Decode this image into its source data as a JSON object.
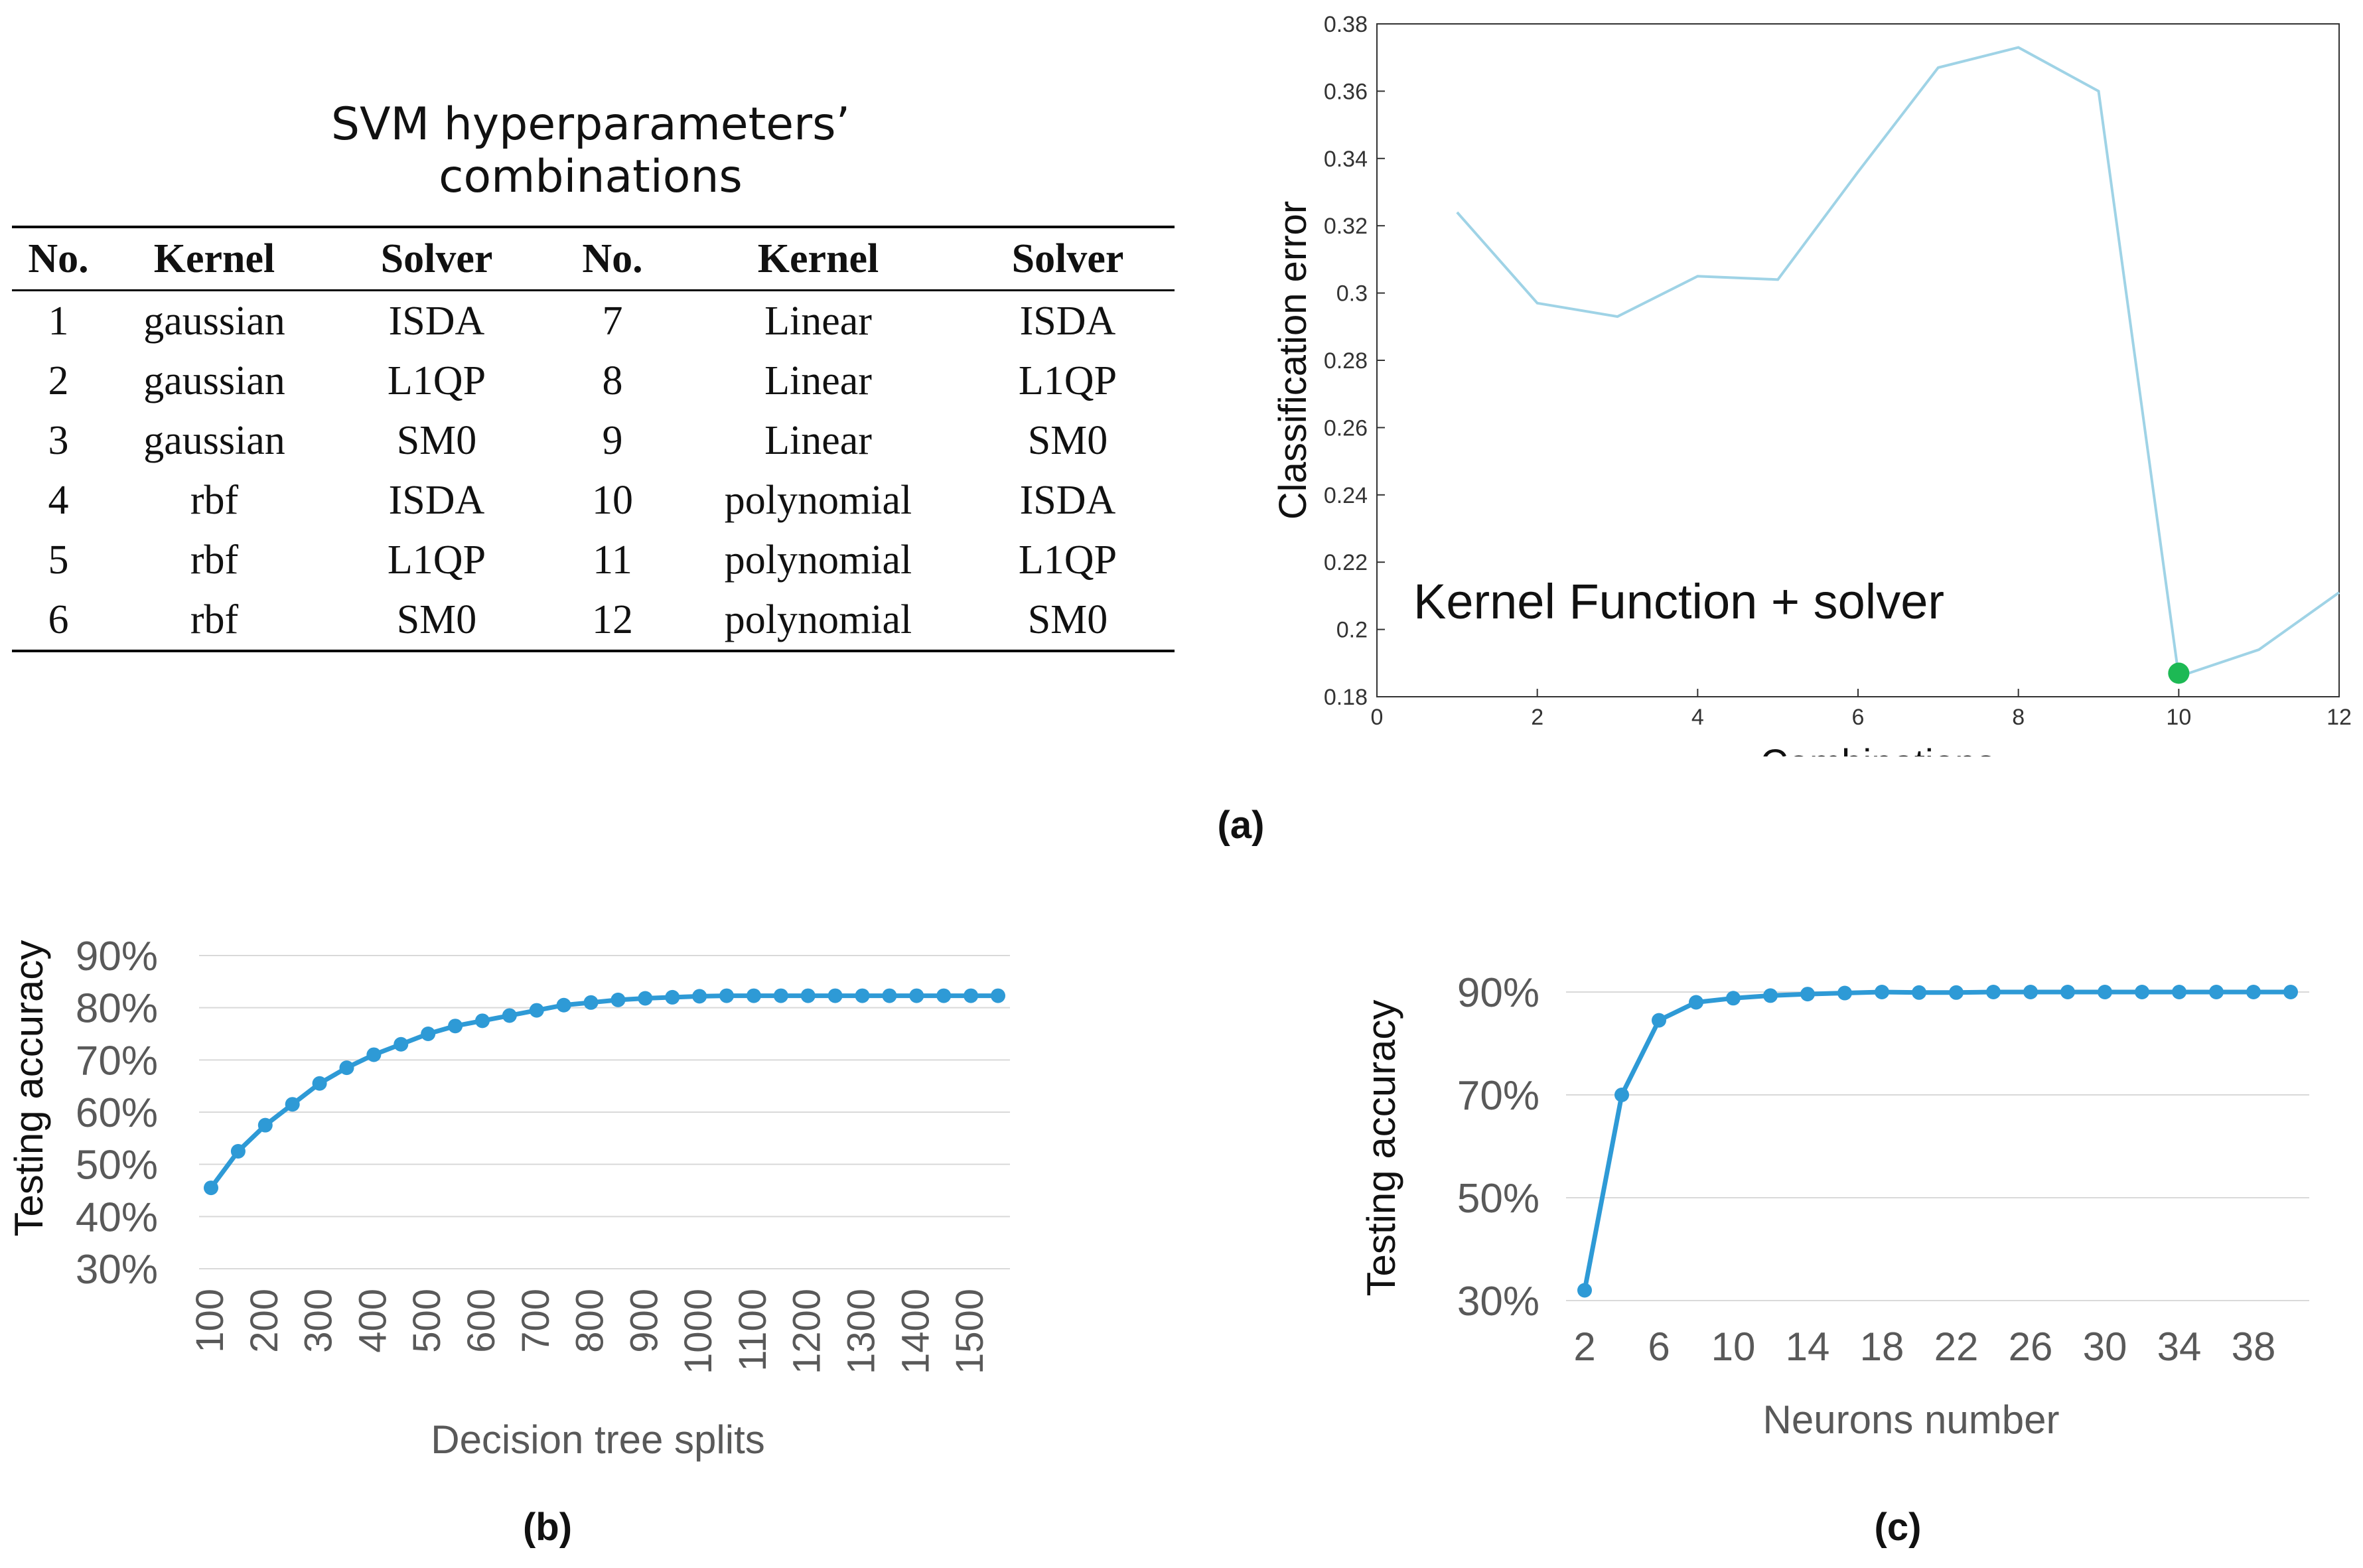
{
  "table": {
    "title": "SVM hyperparameters’ combinations",
    "headers": [
      "No.",
      "Kernel",
      "Solver",
      "No.",
      "Kernel",
      "Solver"
    ],
    "rows": [
      [
        "1",
        "gaussian",
        "ISDA",
        "7",
        "Linear",
        "ISDA"
      ],
      [
        "2",
        "gaussian",
        "L1QP",
        "8",
        "Linear",
        "L1QP"
      ],
      [
        "3",
        "gaussian",
        "SM0",
        "9",
        "Linear",
        "SM0"
      ],
      [
        "4",
        "rbf",
        "ISDA",
        "10",
        "polynomial",
        "ISDA"
      ],
      [
        "5",
        "rbf",
        "L1QP",
        "11",
        "polynomial",
        "L1QP"
      ],
      [
        "6",
        "rbf",
        "SM0",
        "12",
        "polynomial",
        "SM0"
      ]
    ]
  },
  "labels": {
    "a": "(a)",
    "b": "(b)",
    "c": "(c)"
  },
  "chart_data": [
    {
      "id": "a",
      "type": "line",
      "title": "",
      "annotation": "Kernel Function + solver",
      "xlabel": "Combinations",
      "ylabel": "Classification error",
      "xlim": [
        0,
        12
      ],
      "ylim": [
        0.18,
        0.38
      ],
      "x_ticks": [
        0,
        2,
        4,
        6,
        8,
        10,
        12
      ],
      "y_ticks": [
        0.18,
        0.2,
        0.22,
        0.24,
        0.26,
        0.28,
        0.3,
        0.32,
        0.34,
        0.36,
        0.38
      ],
      "x_tick_labels": [
        "0",
        "2",
        "4",
        "6",
        "8",
        "10",
        "12"
      ],
      "y_tick_labels": [
        "0.18",
        "0.2",
        "0.22",
        "0.24",
        "0.26",
        "0.28",
        "0.3",
        "0.32",
        "0.34",
        "0.36",
        "0.38"
      ],
      "x": [
        1,
        2,
        3,
        4,
        5,
        6,
        7,
        8,
        9,
        10,
        11,
        12
      ],
      "y": [
        0.324,
        0.297,
        0.293,
        0.305,
        0.304,
        0.336,
        0.367,
        0.373,
        0.36,
        0.186,
        0.194,
        0.211
      ],
      "highlight": {
        "x": 10,
        "y": 0.187
      },
      "line_color": "#9fd3e6",
      "highlight_color": "#1db954"
    },
    {
      "id": "b",
      "type": "line",
      "xlabel": "Decision tree splits",
      "ylabel": "Testing accuracy",
      "ylim": [
        30,
        90
      ],
      "y_ticks": [
        30,
        40,
        50,
        60,
        70,
        80,
        90
      ],
      "y_tick_labels": [
        "30%",
        "40%",
        "50%",
        "60%",
        "70%",
        "80%",
        "90%"
      ],
      "x_tick_labels": [
        "100",
        "200",
        "300",
        "400",
        "500",
        "600",
        "700",
        "800",
        "900",
        "1000",
        "1100",
        "1200",
        "1300",
        "1400",
        "1500"
      ],
      "x": [
        100,
        150,
        200,
        250,
        300,
        350,
        400,
        450,
        500,
        550,
        600,
        650,
        700,
        750,
        800,
        850,
        900,
        950,
        1000,
        1050,
        1100,
        1150,
        1200,
        1250,
        1300,
        1350,
        1400,
        1450,
        1500,
        1550
      ],
      "y": [
        45.5,
        52.5,
        57.5,
        61.5,
        65.5,
        68.5,
        71,
        73,
        75,
        76.5,
        77.5,
        78.5,
        79.5,
        80.5,
        81,
        81.5,
        81.8,
        82,
        82.2,
        82.3,
        82.3,
        82.3,
        82.3,
        82.3,
        82.3,
        82.3,
        82.3,
        82.3,
        82.3,
        82.3
      ],
      "color": "#2e9ad6"
    },
    {
      "id": "c",
      "type": "line",
      "xlabel": "Neurons number",
      "ylabel": "Testing accuracy",
      "ylim": [
        30,
        100
      ],
      "y_ticks": [
        30,
        50,
        70,
        90
      ],
      "y_tick_labels": [
        "30%",
        "50%",
        "70%",
        "90%"
      ],
      "x_tick_labels": [
        "2",
        "6",
        "10",
        "14",
        "18",
        "22",
        "26",
        "30",
        "34",
        "38"
      ],
      "x": [
        2,
        4,
        6,
        8,
        10,
        12,
        14,
        16,
        18,
        20,
        22,
        24,
        26,
        28,
        30,
        32,
        34,
        36,
        38,
        40
      ],
      "y": [
        32,
        70,
        84.5,
        88,
        88.8,
        89.3,
        89.6,
        89.8,
        90,
        89.9,
        89.9,
        90,
        90,
        90,
        90,
        90,
        90,
        90,
        90,
        90
      ],
      "color": "#2e9ad6"
    }
  ]
}
